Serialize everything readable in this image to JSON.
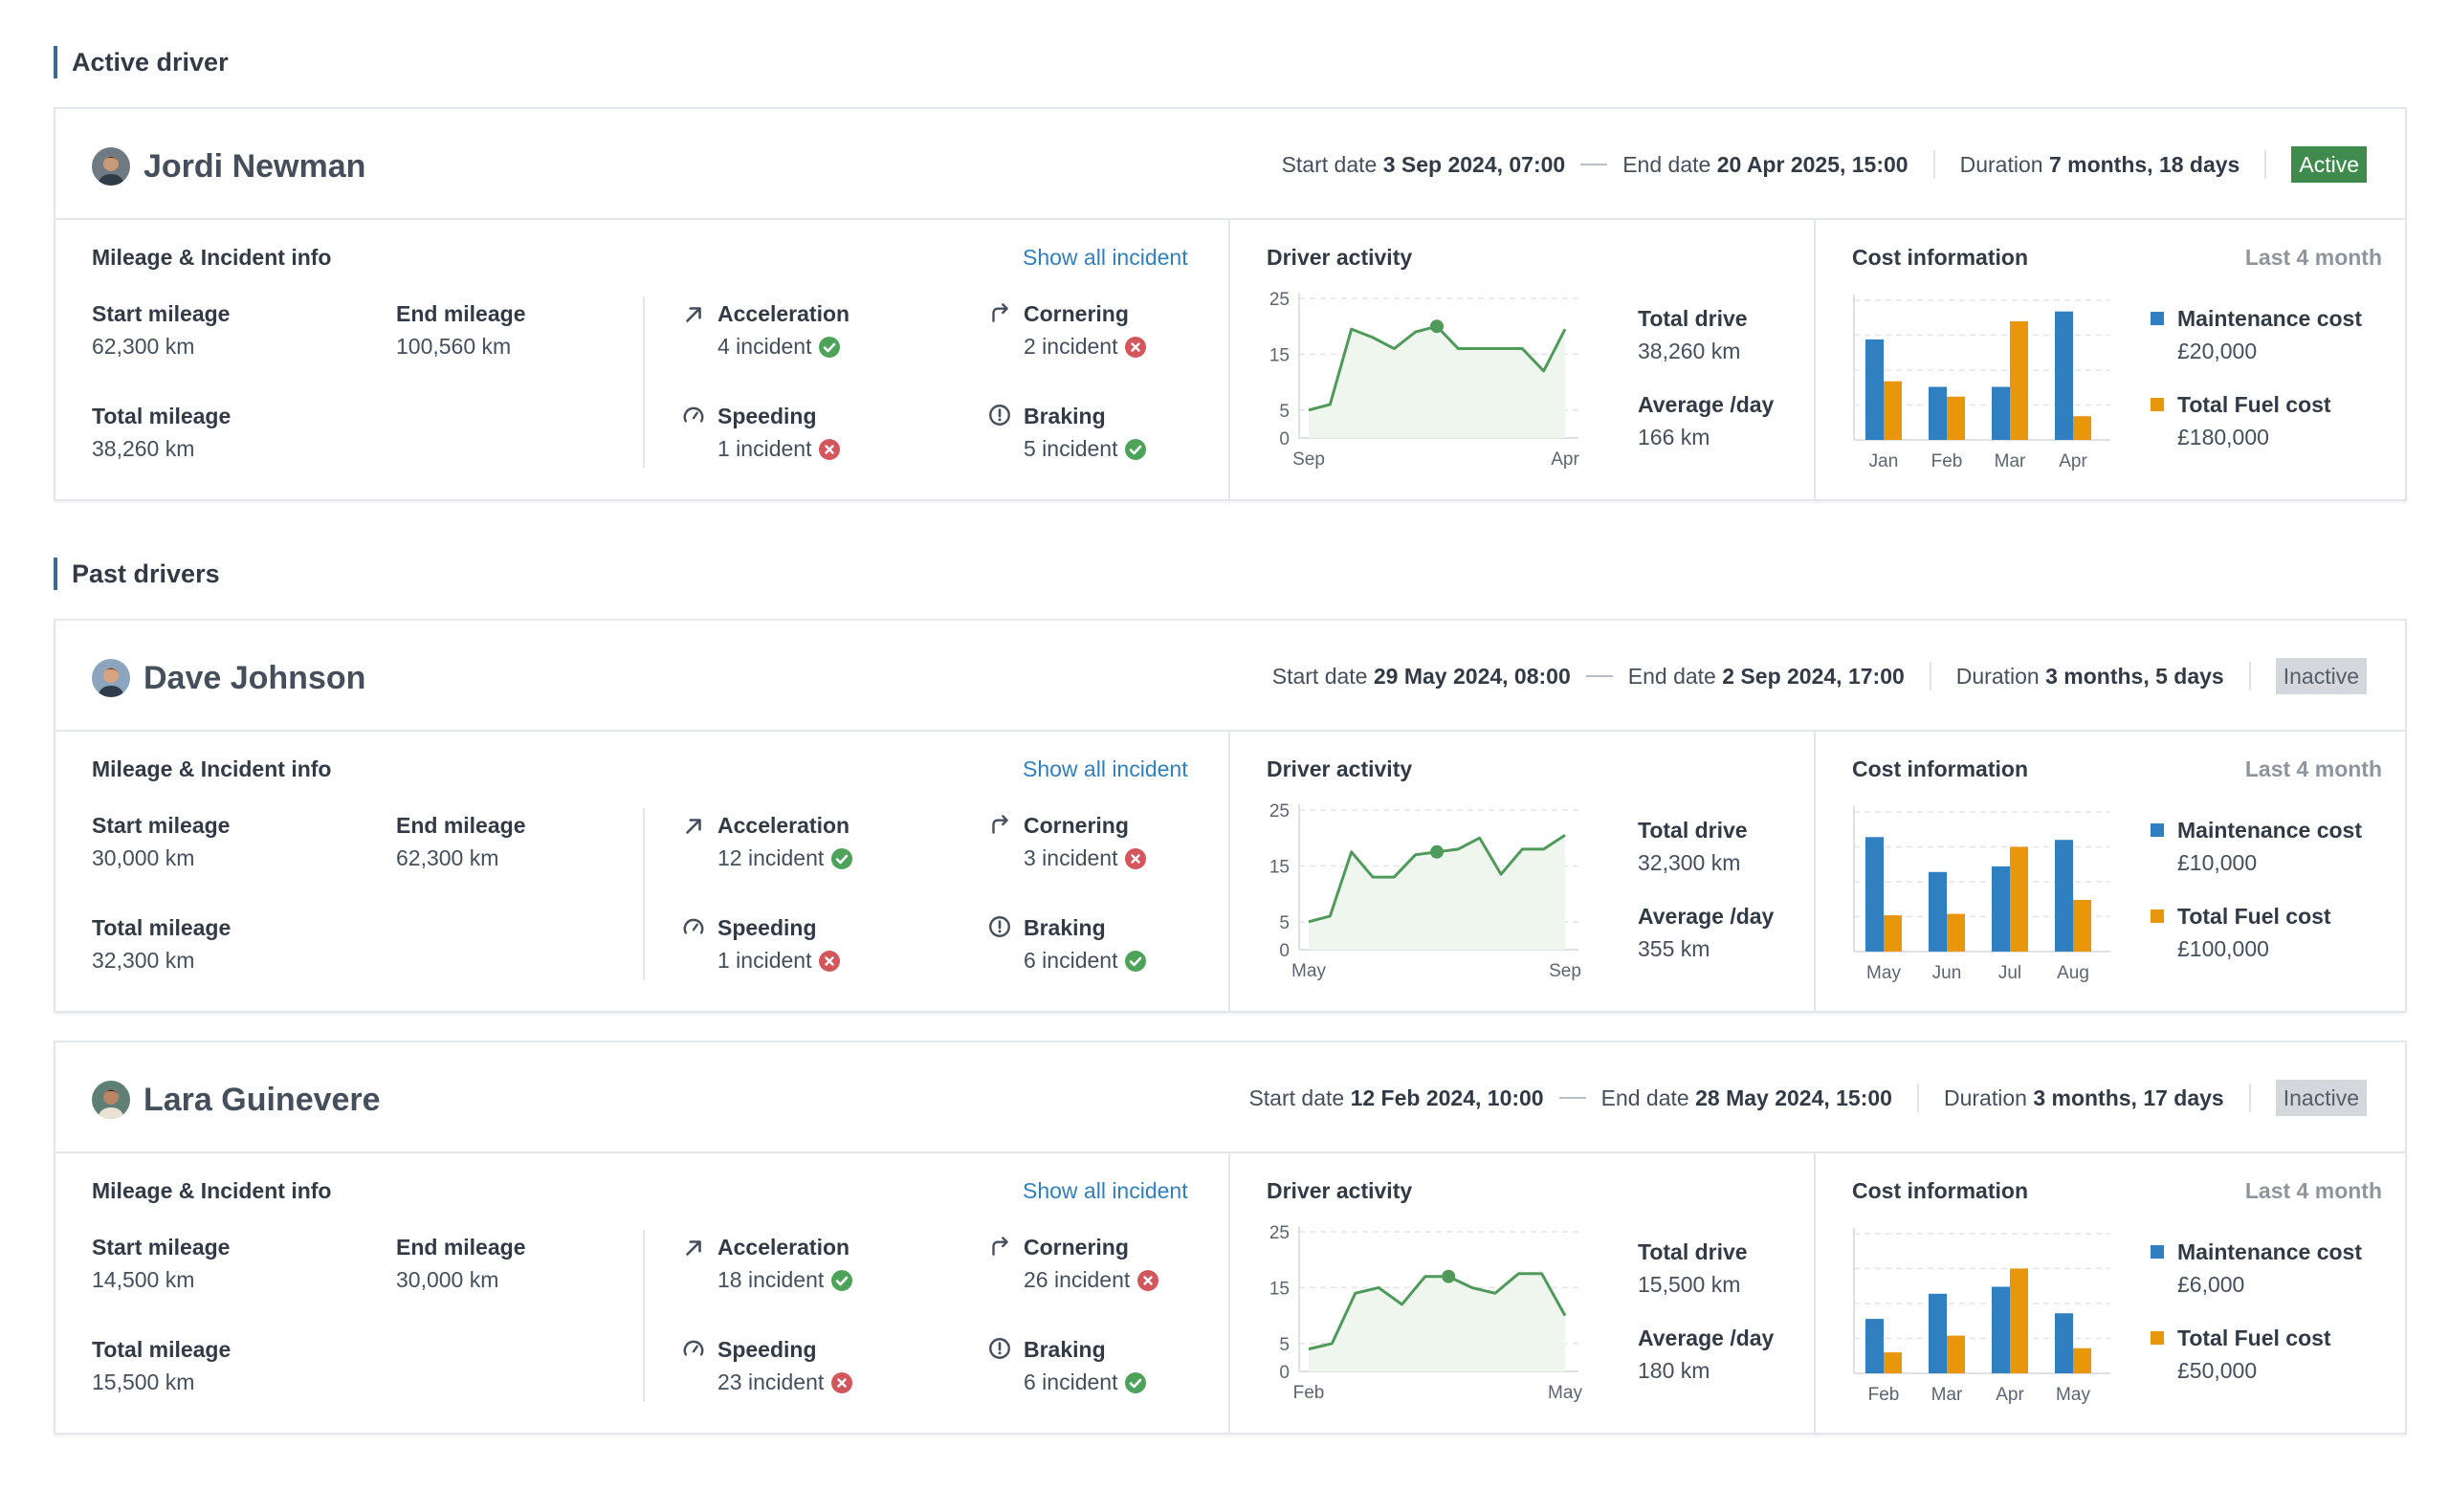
{
  "sections": {
    "active_title": "Active driver",
    "past_title": "Past drivers"
  },
  "labels": {
    "start_date": "Start date",
    "end_date": "End date",
    "duration": "Duration",
    "mileage_title": "Mileage & Incident info",
    "show_all": "Show all incident",
    "start_mileage": "Start mileage",
    "end_mileage": "End mileage",
    "total_mileage": "Total mileage",
    "acceleration": "Acceleration",
    "cornering": "Cornering",
    "speeding": "Speeding",
    "braking": "Braking",
    "driver_activity": "Driver activity",
    "total_drive": "Total drive",
    "average_day": "Average /day",
    "cost_information": "Cost information",
    "last_4_month": "Last 4 month",
    "maintenance_cost": "Maintenance cost",
    "total_fuel_cost": "Total Fuel cost"
  },
  "colors": {
    "accent_bar": "#3a6a8f",
    "maintenance": "#2f7fc1",
    "fuel": "#e8960c",
    "line": "#4f9a5a",
    "ok": "#4ea35b",
    "bad": "#d3565c",
    "active": "#3f8b4e",
    "inactive": "#d4d7db",
    "link": "#2f7fc1"
  },
  "drivers": [
    {
      "name": "Jordi Newman",
      "avatar": "avatar-icon",
      "start": "3 Sep 2024, 07:00",
      "end": "20 Apr 2025, 15:00",
      "duration": "7 months, 18 days",
      "status": "Active",
      "start_mileage": "62,300 km",
      "end_mileage": "100,560 km",
      "total_mileage": "38,260 km",
      "acceleration": "4 incident",
      "acceleration_ok": true,
      "cornering": "2 incident",
      "cornering_ok": false,
      "speeding": "1 incident",
      "speeding_ok": false,
      "braking": "5 incident",
      "braking_ok": true,
      "total_drive": "38,260 km",
      "average_day": "166 km",
      "maintenance_value": "£20,000",
      "fuel_value": "£180,000"
    },
    {
      "name": "Dave Johnson",
      "avatar": "avatar-icon",
      "start": "29 May 2024, 08:00",
      "end": "2 Sep 2024, 17:00",
      "duration": "3 months, 5 days",
      "status": "Inactive",
      "start_mileage": "30,000 km",
      "end_mileage": "62,300 km",
      "total_mileage": "32,300 km",
      "acceleration": "12 incident",
      "acceleration_ok": true,
      "cornering": "3 incident",
      "cornering_ok": false,
      "speeding": "1 incident",
      "speeding_ok": false,
      "braking": "6 incident",
      "braking_ok": true,
      "total_drive": "32,300 km",
      "average_day": "355 km",
      "maintenance_value": "£10,000",
      "fuel_value": "£100,000"
    },
    {
      "name": "Lara Guinevere",
      "avatar": "avatar-icon",
      "start": "12 Feb 2024, 10:00",
      "end": "28 May 2024, 15:00",
      "duration": "3 months, 17 days",
      "status": "Inactive",
      "start_mileage": "14,500 km",
      "end_mileage": "30,000 km",
      "total_mileage": "15,500 km",
      "acceleration": "18 incident",
      "acceleration_ok": true,
      "cornering": "26 incident",
      "cornering_ok": false,
      "speeding": "23 incident",
      "speeding_ok": false,
      "braking": "6 incident",
      "braking_ok": true,
      "total_drive": "15,500 km",
      "average_day": "180 km",
      "maintenance_value": "£6,000",
      "fuel_value": "£50,000"
    }
  ],
  "chart_data": [
    {
      "type": "line",
      "title": "Driver activity",
      "driver": "Jordi Newman",
      "yticks": [
        0,
        5,
        15,
        25
      ],
      "ylim": [
        0,
        25
      ],
      "x_start_label": "Sep",
      "x_end_label": "Apr",
      "values": [
        5,
        6,
        19.5,
        18,
        16,
        19,
        20,
        16,
        16,
        16,
        16,
        12,
        19.5
      ],
      "highlight_index": 6
    },
    {
      "type": "bar",
      "title": "Cost information",
      "driver": "Jordi Newman",
      "categories": [
        "Jan",
        "Feb",
        "Mar",
        "Apr"
      ],
      "series": [
        {
          "name": "Maintenance cost",
          "values": [
            72,
            38,
            38,
            92
          ]
        },
        {
          "name": "Total Fuel cost",
          "values": [
            42,
            31,
            85,
            17
          ]
        }
      ],
      "ylim": [
        0,
        100
      ]
    },
    {
      "type": "line",
      "title": "Driver activity",
      "driver": "Dave Johnson",
      "yticks": [
        0,
        5,
        15,
        25
      ],
      "ylim": [
        0,
        25
      ],
      "x_start_label": "May",
      "x_end_label": "Sep",
      "values": [
        5,
        6,
        17.5,
        13,
        13,
        17,
        17.5,
        18,
        20,
        13.5,
        18,
        18,
        20.5
      ],
      "highlight_index": 6
    },
    {
      "type": "bar",
      "title": "Cost information",
      "driver": "Dave Johnson",
      "categories": [
        "May",
        "Jun",
        "Jul",
        "Aug"
      ],
      "series": [
        {
          "name": "Maintenance cost",
          "values": [
            82,
            57,
            61,
            80
          ]
        },
        {
          "name": "Total Fuel cost",
          "values": [
            26,
            27,
            75,
            37
          ]
        }
      ],
      "ylim": [
        0,
        100
      ]
    },
    {
      "type": "line",
      "title": "Driver activity",
      "driver": "Lara Guinevere",
      "yticks": [
        0,
        5,
        15,
        25
      ],
      "ylim": [
        0,
        25
      ],
      "x_start_label": "Feb",
      "x_end_label": "May",
      "values": [
        4,
        5,
        14,
        15,
        12,
        17,
        17,
        15,
        14,
        17.5,
        17.5,
        10
      ],
      "highlight_index": 6
    },
    {
      "type": "bar",
      "title": "Cost information",
      "driver": "Lara Guinevere",
      "categories": [
        "Feb",
        "Mar",
        "Apr",
        "May"
      ],
      "series": [
        {
          "name": "Maintenance cost",
          "values": [
            39,
            57,
            62,
            43
          ]
        },
        {
          "name": "Total Fuel cost",
          "values": [
            15,
            27,
            75,
            18
          ]
        }
      ],
      "ylim": [
        0,
        100
      ]
    }
  ]
}
